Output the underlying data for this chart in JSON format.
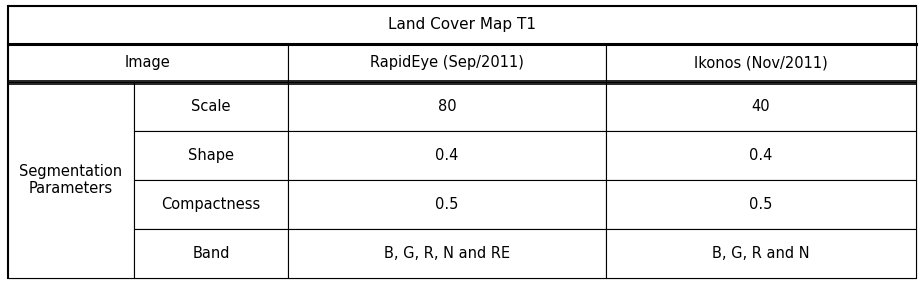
{
  "title": "Land Cover Map T1",
  "header_row": [
    "Image",
    "RapidEye (Sep/2011)",
    "Ikonos (Nov/2011)"
  ],
  "left_header": "Segmentation\nParameters",
  "sub_rows": [
    [
      "Scale",
      "80",
      "40"
    ],
    [
      "Shape",
      "0.4",
      "0.4"
    ],
    [
      "Compactness",
      "0.5",
      "0.5"
    ],
    [
      "Band",
      "B, G, R, N and RE",
      "B, G, R and N"
    ]
  ],
  "background_color": "#ffffff",
  "font_size": 10.5,
  "title_font_size": 11,
  "outer_lw": 1.5,
  "inner_lw": 0.8,
  "thick_lw": 2.2
}
